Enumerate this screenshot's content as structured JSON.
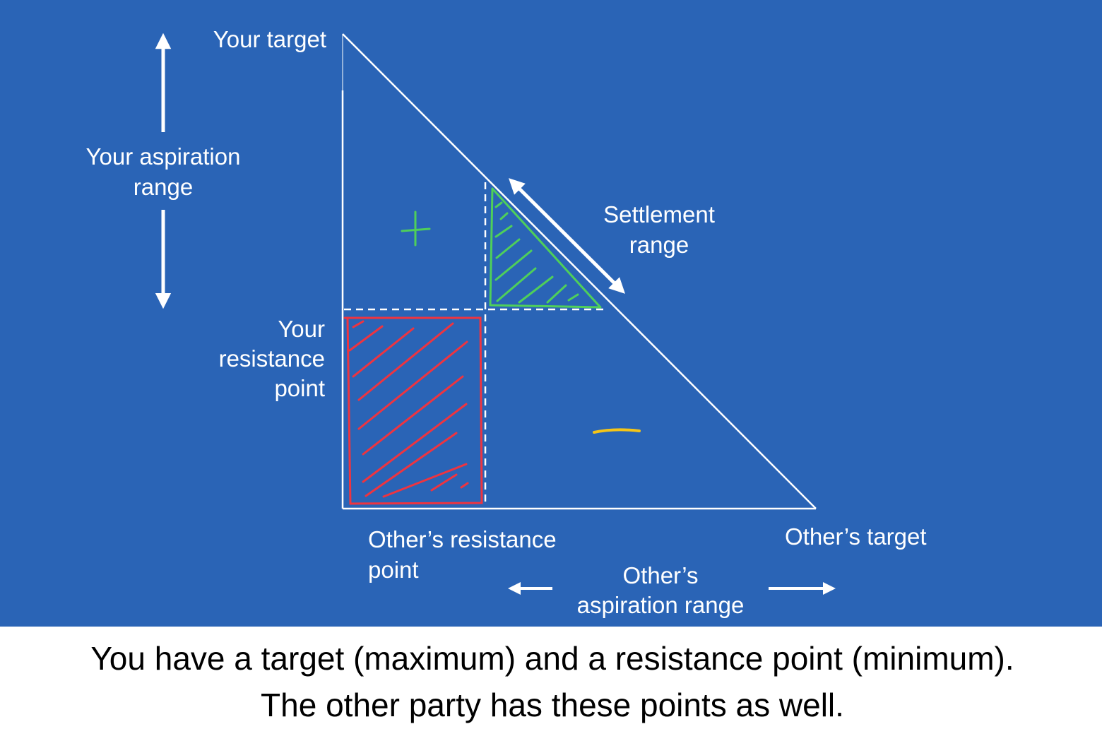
{
  "colors": {
    "background": "#2a64b6",
    "lines": "#ffffff",
    "settlement_zone": "#4fcf5a",
    "negative_zone": "#ee3440",
    "plus_sign": "#4fcf5a",
    "minus_sign": "#f5c518"
  },
  "labels": {
    "your_target": "Your target",
    "your_aspiration_range": [
      "Your aspiration",
      "range"
    ],
    "your_resistance_point": [
      "Your",
      "resistance",
      "point"
    ],
    "settlement_range": [
      "Settlement",
      "range"
    ],
    "others_resistance_point": [
      "Other’s resistance",
      "point"
    ],
    "others_target": "Other’s target",
    "others_aspiration_range": [
      "Other’s",
      "aspiration range"
    ],
    "plus": "+",
    "minus": "−"
  },
  "caption": [
    "You have a target (maximum) and a resistance point (minimum).",
    "The other party has these points as well."
  ]
}
